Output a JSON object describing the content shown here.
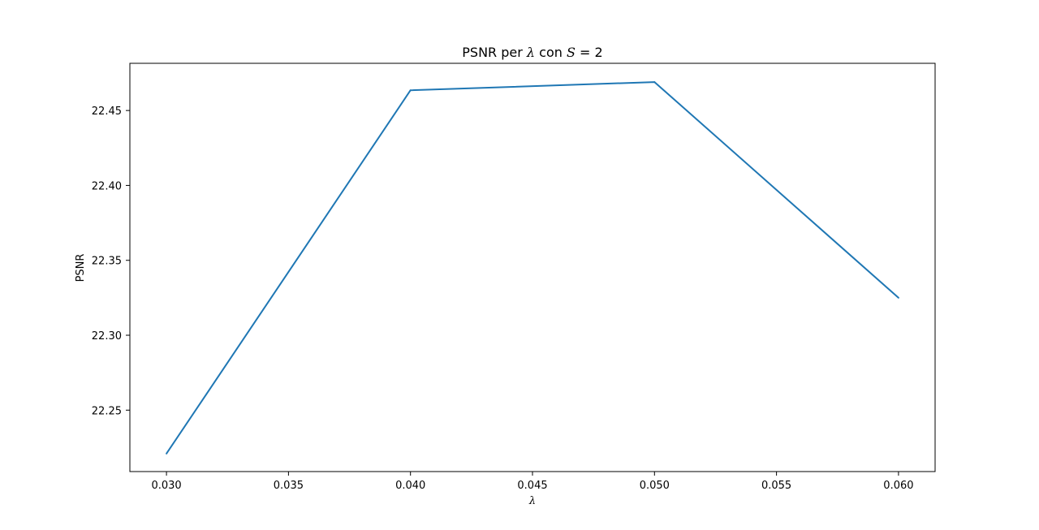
{
  "chart_data": {
    "type": "line",
    "title": {
      "prefix": "PSNR per ",
      "symbol": "λ",
      "middle": " con ",
      "var": "S",
      "suffix": " = 2"
    },
    "xlabel": "λ",
    "ylabel": "PSNR",
    "x": [
      0.03,
      0.04,
      0.05,
      0.06
    ],
    "series": [
      {
        "values": [
          22.221,
          22.4635,
          22.469,
          22.325
        ],
        "color": "#1f77b4"
      }
    ],
    "xlim": [
      0.0285,
      0.0615
    ],
    "ylim": [
      22.209,
      22.4815
    ],
    "xticks": [
      {
        "value": 0.03,
        "label": "0.030"
      },
      {
        "value": 0.035,
        "label": "0.035"
      },
      {
        "value": 0.04,
        "label": "0.040"
      },
      {
        "value": 0.045,
        "label": "0.045"
      },
      {
        "value": 0.05,
        "label": "0.050"
      },
      {
        "value": 0.055,
        "label": "0.055"
      },
      {
        "value": 0.06,
        "label": "0.060"
      }
    ],
    "yticks": [
      {
        "value": 22.25,
        "label": "22.25"
      },
      {
        "value": 22.3,
        "label": "22.30"
      },
      {
        "value": 22.35,
        "label": "22.35"
      },
      {
        "value": 22.4,
        "label": "22.40"
      },
      {
        "value": 22.45,
        "label": "22.45"
      }
    ],
    "grid": false,
    "legend": "none"
  }
}
